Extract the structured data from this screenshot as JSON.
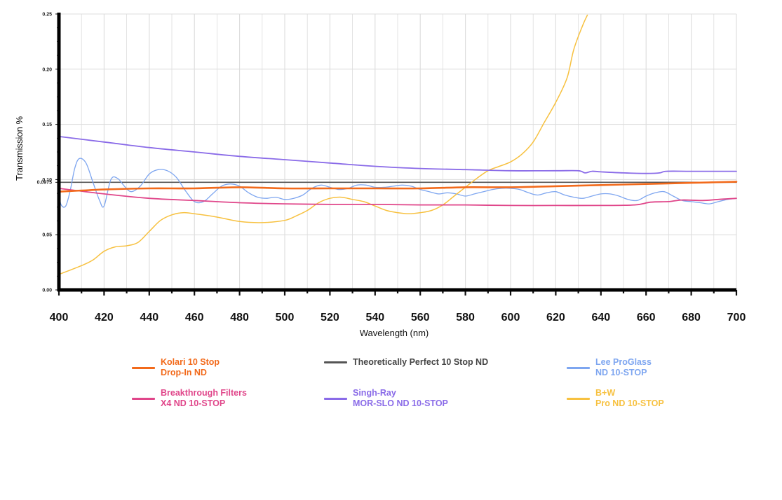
{
  "chart_data": {
    "type": "line",
    "title": "",
    "xlabel": "Wavelength (nm)",
    "ylabel": "Transmission %",
    "xlim": [
      400,
      700
    ],
    "ylim": [
      0,
      0.25
    ],
    "x_ticks": [
      "400",
      "420",
      "440",
      "460",
      "480",
      "500",
      "520",
      "540",
      "560",
      "580",
      "600",
      "620",
      "640",
      "660",
      "680",
      "700"
    ],
    "y_ticks": [
      {
        "value": 0.0,
        "label": "0.00"
      },
      {
        "value": 0.05,
        "label": "0.05"
      },
      {
        "value": 0.0975,
        "label": "0.0975"
      },
      {
        "value": 0.1,
        "label": "0.10"
      },
      {
        "value": 0.15,
        "label": "0.15"
      },
      {
        "value": 0.2,
        "label": "0.20"
      },
      {
        "value": 0.25,
        "label": "0.25"
      }
    ],
    "grid": true,
    "legend_position": "bottom",
    "series": [
      {
        "key": "kolari",
        "name_lines": [
          "Kolari 10 Stop",
          "Drop-In ND"
        ],
        "color": "#F26A1B",
        "points": [
          [
            400,
            0.089
          ],
          [
            420,
            0.091
          ],
          [
            440,
            0.092
          ],
          [
            460,
            0.092
          ],
          [
            480,
            0.093
          ],
          [
            500,
            0.092
          ],
          [
            520,
            0.092
          ],
          [
            540,
            0.092
          ],
          [
            560,
            0.092
          ],
          [
            580,
            0.093
          ],
          [
            600,
            0.093
          ],
          [
            620,
            0.094
          ],
          [
            640,
            0.095
          ],
          [
            660,
            0.096
          ],
          [
            680,
            0.097
          ],
          [
            700,
            0.098
          ]
        ]
      },
      {
        "key": "perfect",
        "name_lines": [
          "Theoretically Perfect 10 Stop ND"
        ],
        "color": "#555555",
        "points": [
          [
            400,
            0.0975
          ],
          [
            700,
            0.0975
          ]
        ]
      },
      {
        "key": "lee",
        "name_lines": [
          "Lee ProGlass",
          "ND 10-STOP"
        ],
        "color": "#7EA6F0",
        "points": [
          [
            400,
            0.087
          ],
          [
            401,
            0.077
          ],
          [
            403,
            0.076
          ],
          [
            405,
            0.09
          ],
          [
            407,
            0.11
          ],
          [
            409,
            0.119
          ],
          [
            412,
            0.115
          ],
          [
            415,
            0.098
          ],
          [
            418,
            0.081
          ],
          [
            420,
            0.076
          ],
          [
            423,
            0.1
          ],
          [
            426,
            0.101
          ],
          [
            429,
            0.094
          ],
          [
            432,
            0.089
          ],
          [
            436,
            0.094
          ],
          [
            440,
            0.105
          ],
          [
            444,
            0.109
          ],
          [
            448,
            0.108
          ],
          [
            452,
            0.102
          ],
          [
            456,
            0.09
          ],
          [
            460,
            0.08
          ],
          [
            464,
            0.08
          ],
          [
            468,
            0.087
          ],
          [
            472,
            0.094
          ],
          [
            476,
            0.096
          ],
          [
            480,
            0.094
          ],
          [
            484,
            0.088
          ],
          [
            488,
            0.084
          ],
          [
            492,
            0.083
          ],
          [
            496,
            0.084
          ],
          [
            500,
            0.082
          ],
          [
            504,
            0.083
          ],
          [
            508,
            0.086
          ],
          [
            512,
            0.092
          ],
          [
            516,
            0.095
          ],
          [
            520,
            0.093
          ],
          [
            524,
            0.091
          ],
          [
            528,
            0.092
          ],
          [
            532,
            0.095
          ],
          [
            536,
            0.095
          ],
          [
            540,
            0.093
          ],
          [
            544,
            0.093
          ],
          [
            548,
            0.094
          ],
          [
            552,
            0.095
          ],
          [
            556,
            0.094
          ],
          [
            560,
            0.091
          ],
          [
            564,
            0.089
          ],
          [
            568,
            0.087
          ],
          [
            572,
            0.088
          ],
          [
            576,
            0.087
          ],
          [
            580,
            0.085
          ],
          [
            584,
            0.087
          ],
          [
            588,
            0.089
          ],
          [
            592,
            0.091
          ],
          [
            596,
            0.092
          ],
          [
            600,
            0.092
          ],
          [
            604,
            0.091
          ],
          [
            608,
            0.088
          ],
          [
            612,
            0.086
          ],
          [
            616,
            0.088
          ],
          [
            620,
            0.089
          ],
          [
            624,
            0.086
          ],
          [
            628,
            0.084
          ],
          [
            632,
            0.083
          ],
          [
            636,
            0.085
          ],
          [
            640,
            0.087
          ],
          [
            644,
            0.087
          ],
          [
            648,
            0.085
          ],
          [
            652,
            0.082
          ],
          [
            656,
            0.081
          ],
          [
            660,
            0.085
          ],
          [
            664,
            0.088
          ],
          [
            668,
            0.089
          ],
          [
            672,
            0.085
          ],
          [
            676,
            0.081
          ],
          [
            680,
            0.08
          ],
          [
            684,
            0.079
          ],
          [
            688,
            0.078
          ],
          [
            692,
            0.08
          ],
          [
            696,
            0.082
          ],
          [
            700,
            0.083
          ]
        ]
      },
      {
        "key": "breakthrough",
        "name_lines": [
          "Breakthrough Filters",
          "X4 ND 10-STOP"
        ],
        "color": "#E0468A",
        "points": [
          [
            400,
            0.092
          ],
          [
            420,
            0.087
          ],
          [
            440,
            0.083
          ],
          [
            460,
            0.081
          ],
          [
            480,
            0.079
          ],
          [
            500,
            0.078
          ],
          [
            520,
            0.0775
          ],
          [
            540,
            0.0775
          ],
          [
            560,
            0.077
          ],
          [
            580,
            0.077
          ],
          [
            600,
            0.0765
          ],
          [
            620,
            0.0765
          ],
          [
            640,
            0.0765
          ],
          [
            655,
            0.077
          ],
          [
            662,
            0.0795
          ],
          [
            670,
            0.08
          ],
          [
            676,
            0.0815
          ],
          [
            685,
            0.081
          ],
          [
            692,
            0.082
          ],
          [
            700,
            0.083
          ]
        ]
      },
      {
        "key": "singhray",
        "name_lines": [
          "Singh-Ray",
          "MOR-SLO ND 10-STOP"
        ],
        "color": "#8A6BE8",
        "points": [
          [
            400,
            0.139
          ],
          [
            420,
            0.134
          ],
          [
            440,
            0.129
          ],
          [
            460,
            0.125
          ],
          [
            480,
            0.121
          ],
          [
            500,
            0.118
          ],
          [
            520,
            0.115
          ],
          [
            540,
            0.112
          ],
          [
            560,
            0.11
          ],
          [
            580,
            0.109
          ],
          [
            600,
            0.108
          ],
          [
            620,
            0.108
          ],
          [
            630,
            0.108
          ],
          [
            633,
            0.106
          ],
          [
            636,
            0.1075
          ],
          [
            640,
            0.107
          ],
          [
            650,
            0.106
          ],
          [
            660,
            0.1055
          ],
          [
            666,
            0.106
          ],
          [
            669,
            0.1075
          ],
          [
            680,
            0.1075
          ],
          [
            700,
            0.1075
          ]
        ]
      },
      {
        "key": "bw",
        "name_lines": [
          "B+W",
          "Pro ND 10-STOP"
        ],
        "color": "#F7C140",
        "points": [
          [
            400,
            0.014
          ],
          [
            410,
            0.022
          ],
          [
            415,
            0.027
          ],
          [
            420,
            0.035
          ],
          [
            425,
            0.039
          ],
          [
            430,
            0.04
          ],
          [
            435,
            0.043
          ],
          [
            440,
            0.053
          ],
          [
            445,
            0.063
          ],
          [
            450,
            0.068
          ],
          [
            455,
            0.07
          ],
          [
            460,
            0.069
          ],
          [
            470,
            0.066
          ],
          [
            480,
            0.062
          ],
          [
            490,
            0.061
          ],
          [
            500,
            0.063
          ],
          [
            505,
            0.067
          ],
          [
            510,
            0.072
          ],
          [
            515,
            0.079
          ],
          [
            520,
            0.083
          ],
          [
            525,
            0.084
          ],
          [
            530,
            0.082
          ],
          [
            535,
            0.08
          ],
          [
            540,
            0.076
          ],
          [
            545,
            0.072
          ],
          [
            550,
            0.07
          ],
          [
            555,
            0.069
          ],
          [
            560,
            0.07
          ],
          [
            565,
            0.072
          ],
          [
            570,
            0.077
          ],
          [
            575,
            0.085
          ],
          [
            580,
            0.093
          ],
          [
            585,
            0.101
          ],
          [
            590,
            0.108
          ],
          [
            595,
            0.112
          ],
          [
            600,
            0.116
          ],
          [
            605,
            0.123
          ],
          [
            610,
            0.134
          ],
          [
            615,
            0.152
          ],
          [
            620,
            0.17
          ],
          [
            625,
            0.192
          ],
          [
            628,
            0.218
          ],
          [
            632,
            0.24
          ],
          [
            634,
            0.249
          ]
        ]
      }
    ]
  }
}
